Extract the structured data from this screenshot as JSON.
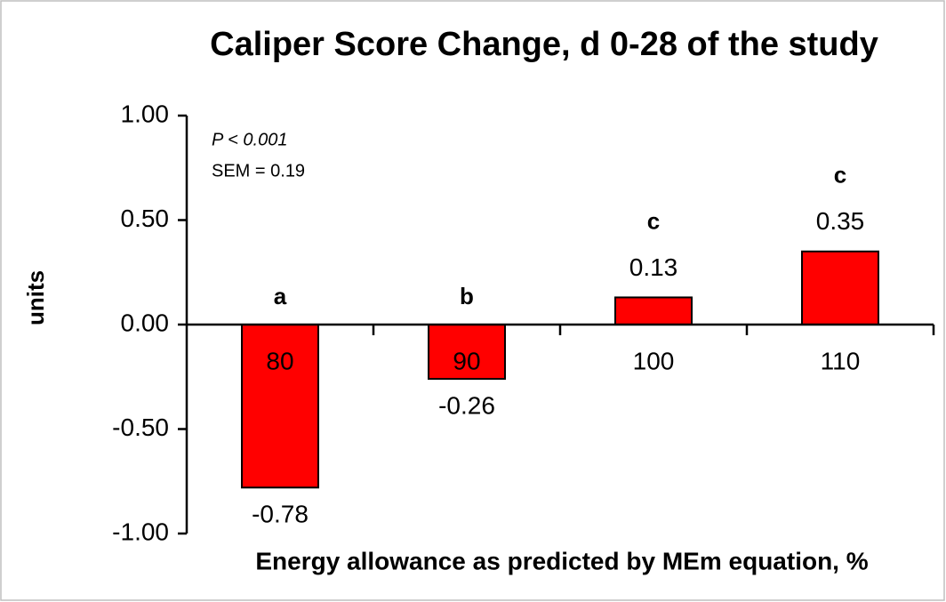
{
  "chart_data": {
    "type": "bar",
    "title": "Caliper Score Change, d 0-28 of the study",
    "ylabel": "units",
    "xlabel": "Energy allowance as predicted by MEm equation, %",
    "categories": [
      "80",
      "90",
      "100",
      "110"
    ],
    "values": [
      -0.78,
      -0.26,
      0.13,
      0.35
    ],
    "letters": [
      "a",
      "b",
      "c",
      "c"
    ],
    "annotations": [
      "P < 0.001",
      "SEM = 0.19"
    ],
    "color": "#ff0000",
    "ylim": [
      -1,
      1
    ],
    "yticks": [
      {
        "value": -1,
        "label": "-1.00"
      },
      {
        "value": -0.5,
        "label": "-0.50"
      },
      {
        "value": 0,
        "label": "0.00"
      },
      {
        "value": 0.5,
        "label": "0.50"
      },
      {
        "value": 1,
        "label": "1.00"
      }
    ],
    "grid": false
  }
}
